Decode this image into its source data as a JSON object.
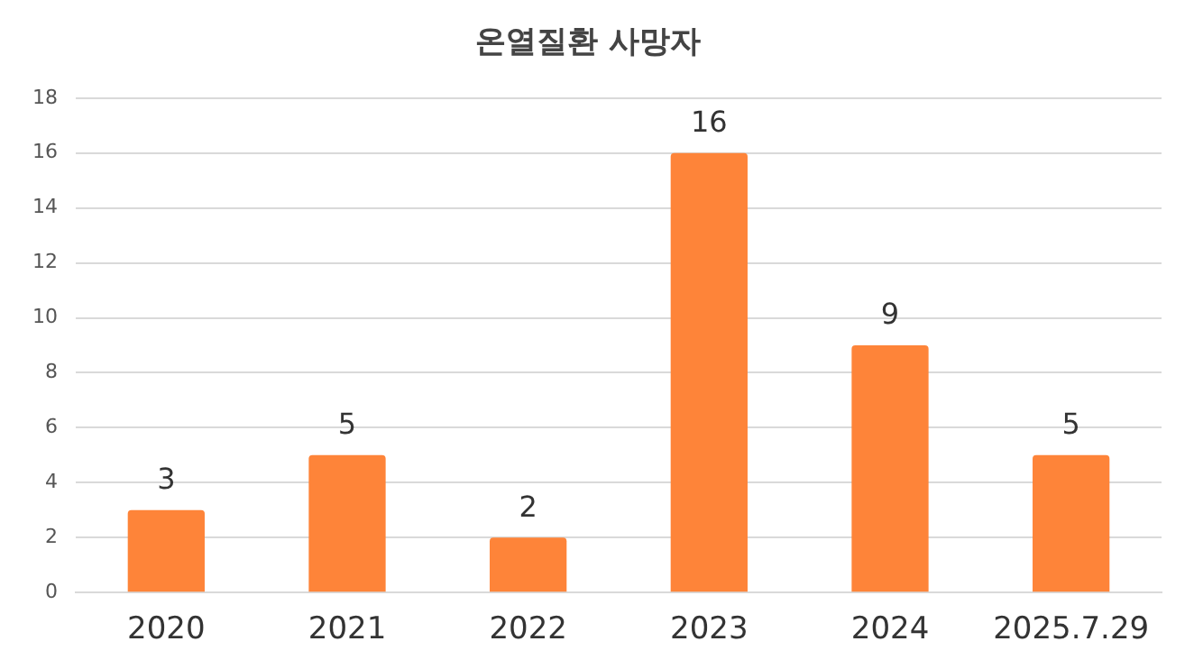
{
  "chart_data": {
    "type": "bar",
    "title": "온열질환 사망자",
    "categories": [
      "2020",
      "2021",
      "2022",
      "2023",
      "2024",
      "2025.7.29"
    ],
    "values": [
      3,
      5,
      2,
      16,
      9,
      5
    ],
    "color": "#fe8439",
    "ylim": [
      0,
      18
    ],
    "yticks": [
      0,
      2,
      4,
      6,
      8,
      10,
      12,
      14,
      16,
      18
    ],
    "grid": "y",
    "data_labels": true
  }
}
